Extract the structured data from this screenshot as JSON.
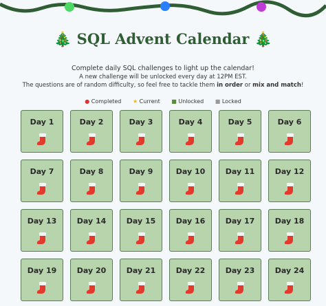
{
  "header": {
    "title": "SQL Advent Calendar",
    "intro": [
      "Complete daily SQL challenges to light up the calendar!",
      "A new challenge will be unlocked every day at 12PM EST."
    ],
    "note": {
      "parts": [
        "The questions are of random difficulty, so feel free to tackle them ",
        "in order",
        " or ",
        "mix and match",
        "!"
      ]
    }
  },
  "legend": [
    "Completed",
    "Current",
    "Unlocked",
    "Locked"
  ],
  "days": [
    "Day 1",
    "Day 2",
    "Day 3",
    "Day 4",
    "Day 5",
    "Day 6",
    "Day 7",
    "Day 8",
    "Day 9",
    "Day 10",
    "Day 11",
    "Day 12",
    "Day 13",
    "Day 14",
    "Day 15",
    "Day 16",
    "Day 17",
    "Day 18",
    "Day 19",
    "Day 20",
    "Day 21",
    "Day 22",
    "Day 23",
    "Day 24"
  ]
}
